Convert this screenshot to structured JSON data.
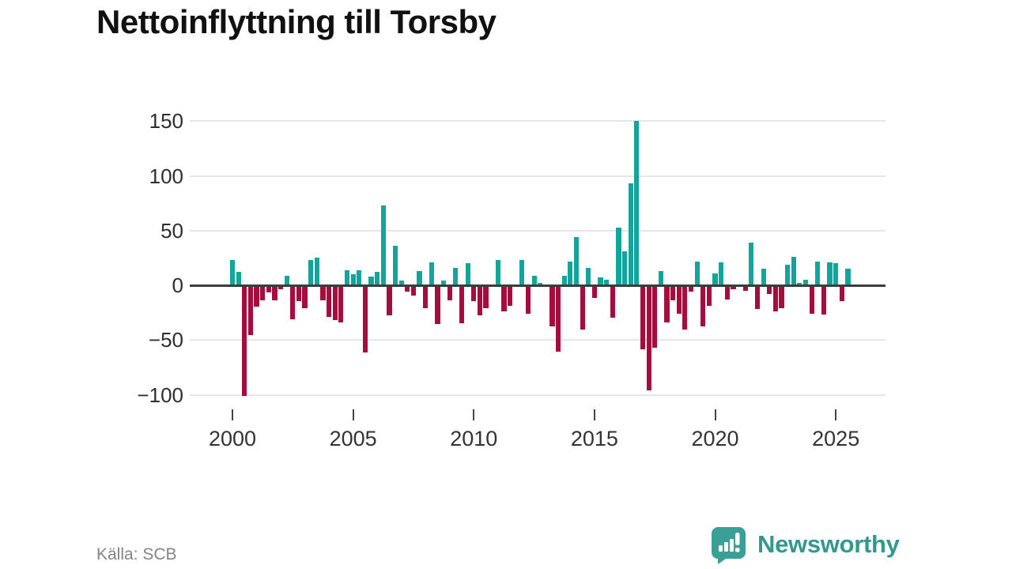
{
  "title": "Nettoinflyttning till Torsby",
  "source": "Källa: SCB",
  "branding": {
    "name": "Newsworthy",
    "icon": "newsworthy-speech-bubble-chart-icon"
  },
  "colors": {
    "positive": "#13a49b",
    "negative": "#a50d3e",
    "grid": "#e6e6e6",
    "zero_line": "#3c3c3c",
    "axis_text": "#2e2e2e",
    "muted_text": "#848484",
    "brand": "#33988e",
    "title_text": "#111111"
  },
  "chart_data": {
    "type": "bar",
    "title": "Nettoinflyttning till Torsby",
    "frequency": "quarterly",
    "x_start": {
      "year": 2000,
      "quarter": 1
    },
    "x_end": {
      "year": 2025,
      "quarter": 3
    },
    "values": [
      23,
      12,
      -100,
      -45,
      -19,
      -13,
      -6,
      -13,
      -3,
      9,
      -30,
      -14,
      -20,
      23,
      25,
      -13,
      -28,
      -31,
      -33,
      14,
      10,
      14,
      -61,
      8,
      12,
      73,
      -27,
      36,
      4,
      -5,
      -9,
      13,
      -20,
      21,
      -35,
      4,
      -13,
      16,
      -34,
      20,
      -14,
      -27,
      -20,
      0,
      23,
      -23,
      -18,
      0,
      23,
      -25,
      9,
      2,
      1,
      -37,
      -60,
      9,
      22,
      44,
      -40,
      16,
      -11,
      7,
      5,
      -29,
      53,
      31,
      93,
      150,
      -58,
      -95,
      -56,
      13,
      -33,
      -13,
      -25,
      -40,
      -5,
      22,
      -37,
      -18,
      11,
      21,
      -12,
      -3,
      0,
      -4,
      39,
      -21,
      15,
      -7,
      -23,
      -20,
      19,
      26,
      2,
      5,
      -25,
      22,
      -26,
      21,
      20,
      -14,
      15
    ],
    "x_tick_years": [
      2000,
      2005,
      2010,
      2015,
      2020,
      2025
    ],
    "y_ticks": [
      150,
      100,
      50,
      0,
      -50,
      -100
    ],
    "ylim": [
      -110,
      160
    ],
    "grid": "horizontal",
    "legend": "none",
    "xlabel": "",
    "ylabel": ""
  }
}
